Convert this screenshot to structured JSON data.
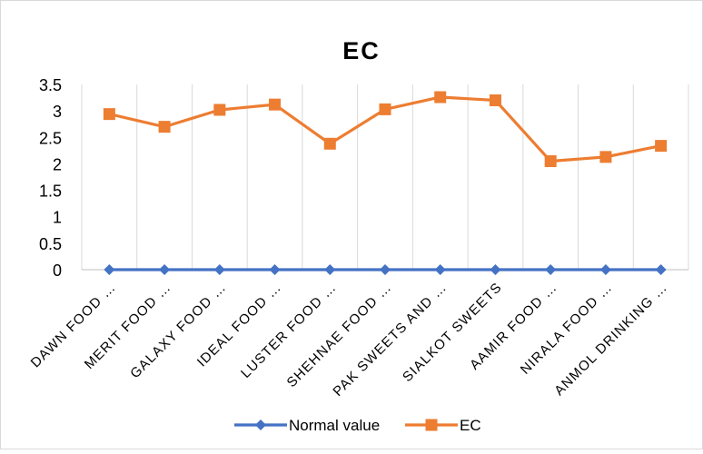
{
  "chart_data": {
    "type": "line",
    "title": "EC",
    "xlabel": "",
    "ylabel": "",
    "ylim": [
      0,
      3.5
    ],
    "y_ticks": [
      "0",
      "0.5",
      "1",
      "1.5",
      "2",
      "2.5",
      "3",
      "3.5"
    ],
    "y_tick_values": [
      0,
      0.5,
      1,
      1.5,
      2,
      2.5,
      3,
      3.5
    ],
    "categories": [
      "DAWN FOOD …",
      "MERIT FOOD …",
      "GALAXY FOOD …",
      "IDEAL FOOD …",
      "LUSTER FOOD …",
      "SHEHNAE FOOD …",
      "PAK SWEETS AND …",
      "SIALKOT SWEETS",
      "AAMIR FOOD …",
      "NIRALA FOOD …",
      "ANMOL DRINKING …"
    ],
    "grid": "vertical",
    "legend_position": "bottom",
    "series": [
      {
        "name": "Normal value",
        "color": "#4472C4",
        "marker": "diamond",
        "values": [
          0,
          0,
          0,
          0,
          0,
          0,
          0,
          0,
          0,
          0,
          0
        ]
      },
      {
        "name": "EC",
        "color": "#ED7D31",
        "marker": "square",
        "values": [
          2.94,
          2.7,
          3.02,
          3.12,
          2.38,
          3.03,
          3.26,
          3.2,
          2.05,
          2.13,
          2.34
        ]
      }
    ]
  }
}
